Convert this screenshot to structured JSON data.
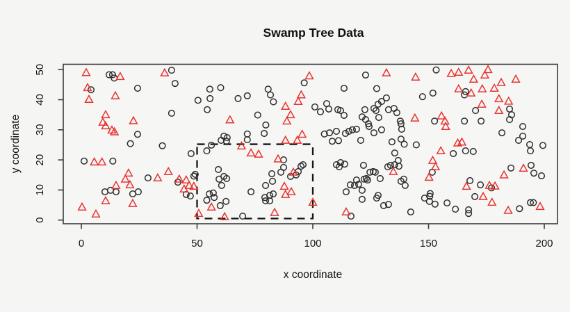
{
  "chart_data": {
    "type": "scatter",
    "title": "Swamp Tree Data",
    "xlabel": "x coordinate",
    "ylabel": "y coordinate",
    "xlim": [
      0,
      200
    ],
    "ylim": [
      0,
      50
    ],
    "x_ticks": [
      0,
      50,
      100,
      150,
      200
    ],
    "y_ticks": [
      0,
      10,
      20,
      30,
      40,
      50
    ],
    "grid": false,
    "legend": "none",
    "frame_color": "#3c3c3c",
    "annotation_box": {
      "shape": "dashed-rectangle",
      "color": "#161616",
      "x0": 50,
      "x1": 100,
      "y0": 0.5,
      "y1": 25.2
    },
    "series": [
      {
        "name": "circles",
        "marker": "open-circle",
        "color": "#2e2e2e",
        "points": [
          [
            12,
            48.3
          ],
          [
            13.5,
            48.3
          ],
          [
            14.2,
            47.2
          ],
          [
            39,
            49.8
          ],
          [
            4.2,
            43.3
          ],
          [
            40.5,
            45.4
          ],
          [
            24.3,
            43.8
          ],
          [
            39,
            35.5
          ],
          [
            24.3,
            28.5
          ],
          [
            21.2,
            25.4
          ],
          [
            35,
            24.7
          ],
          [
            1.2,
            19.6
          ],
          [
            13.6,
            19.6
          ],
          [
            28.8,
            14
          ],
          [
            10.2,
            9.4
          ],
          [
            12.6,
            9.9
          ],
          [
            15,
            9.4
          ],
          [
            22.2,
            8.7
          ],
          [
            24.6,
            9.4
          ],
          [
            41.7,
            12.6
          ],
          [
            47.4,
            22.1
          ],
          [
            48.6,
            14.6
          ],
          [
            49.2,
            15.2
          ],
          [
            45.3,
            8.5
          ],
          [
            47.1,
            8
          ],
          [
            55.5,
            43.5
          ],
          [
            60.2,
            44
          ],
          [
            50.4,
            39.8
          ],
          [
            55.6,
            40.4
          ],
          [
            54.4,
            36.7
          ],
          [
            67.7,
            40.4
          ],
          [
            71.7,
            41.3
          ],
          [
            80.7,
            43.5
          ],
          [
            81.7,
            41.6
          ],
          [
            83,
            39.3
          ],
          [
            76.2,
            34.9
          ],
          [
            79.7,
            31.6
          ],
          [
            79,
            28.8
          ],
          [
            61.6,
            27.9
          ],
          [
            63,
            27.4
          ],
          [
            60.4,
            26.5
          ],
          [
            62.7,
            26.2
          ],
          [
            71.7,
            28.6
          ],
          [
            71.7,
            26.7
          ],
          [
            96.3,
            45.6
          ],
          [
            54.2,
            23
          ],
          [
            56.2,
            24.9
          ],
          [
            87.4,
            20
          ],
          [
            59.2,
            16.8
          ],
          [
            61.6,
            14.5
          ],
          [
            62.8,
            13.8
          ],
          [
            59.5,
            13.6
          ],
          [
            60.6,
            11.5
          ],
          [
            55.3,
            8.7
          ],
          [
            57,
            9
          ],
          [
            57.4,
            7.5
          ],
          [
            54.2,
            6.6
          ],
          [
            60,
            4.8
          ],
          [
            62.5,
            6.2
          ],
          [
            69.7,
            1.3
          ],
          [
            73.3,
            9.4
          ],
          [
            79.6,
            11.5
          ],
          [
            82.6,
            12.9
          ],
          [
            82.3,
            15.4
          ],
          [
            86.2,
            15.9
          ],
          [
            87.4,
            17.5
          ],
          [
            79.3,
            7.5
          ],
          [
            81.4,
            8.2
          ],
          [
            82.9,
            8.7
          ],
          [
            79.6,
            6.4
          ],
          [
            81.4,
            6.4
          ],
          [
            90.4,
            14.5
          ],
          [
            92.8,
            15
          ],
          [
            93.7,
            16.1
          ],
          [
            94.9,
            17.9
          ],
          [
            95.8,
            18.4
          ],
          [
            122.8,
            48.2
          ],
          [
            113.5,
            43.8
          ],
          [
            127.6,
            43.7
          ],
          [
            100.9,
            37.6
          ],
          [
            103.3,
            36
          ],
          [
            106,
            38.7
          ],
          [
            106.9,
            36.9
          ],
          [
            110.8,
            36.7
          ],
          [
            112,
            36.4
          ],
          [
            113.5,
            34.8
          ],
          [
            147.4,
            41
          ],
          [
            151.9,
            42.2
          ],
          [
            153.3,
            49.9
          ],
          [
            122.5,
            36.7
          ],
          [
            126.4,
            37.1
          ],
          [
            127.3,
            36.4
          ],
          [
            128.2,
            38.5
          ],
          [
            129.7,
            39.4
          ],
          [
            131.8,
            40.6
          ],
          [
            132.7,
            36.7
          ],
          [
            135.1,
            37.1
          ],
          [
            136.3,
            35.7
          ],
          [
            137.8,
            32.9
          ],
          [
            138.1,
            32
          ],
          [
            138.4,
            30.2
          ],
          [
            128.5,
            34.1
          ],
          [
            121.3,
            34.3
          ],
          [
            122.8,
            33.4
          ],
          [
            124,
            32
          ],
          [
            124.3,
            31.1
          ],
          [
            129.7,
            30
          ],
          [
            126.4,
            29
          ],
          [
            117.1,
            30
          ],
          [
            118.9,
            30.2
          ],
          [
            115.6,
            29.5
          ],
          [
            110.2,
            29.5
          ],
          [
            107.2,
            29
          ],
          [
            105,
            28.6
          ],
          [
            108.4,
            26.2
          ],
          [
            111.1,
            26.4
          ],
          [
            114.1,
            28.8
          ],
          [
            120.7,
            26.5
          ],
          [
            134.2,
            26
          ],
          [
            138.1,
            26.9
          ],
          [
            139.5,
            25.2
          ],
          [
            144.7,
            25
          ],
          [
            135.4,
            22.3
          ],
          [
            110.2,
            18.4
          ],
          [
            112,
            19.1
          ],
          [
            113.8,
            18.6
          ],
          [
            111.4,
            17.7
          ],
          [
            121.9,
            18.2
          ],
          [
            124.7,
            15.9
          ],
          [
            126.1,
            16.1
          ],
          [
            127,
            15.9
          ],
          [
            123.1,
            13.8
          ],
          [
            123.7,
            13.3
          ],
          [
            122.2,
            13.6
          ],
          [
            118.9,
            13.3
          ],
          [
            119.8,
            11.9
          ],
          [
            118,
            11.5
          ],
          [
            116.2,
            11.7
          ],
          [
            114.4,
            9.4
          ],
          [
            121.3,
            9.9
          ],
          [
            129.1,
            13.8
          ],
          [
            121.3,
            6.9
          ],
          [
            127.6,
            7.3
          ],
          [
            128.2,
            8.2
          ],
          [
            130.6,
            4.8
          ],
          [
            132.7,
            5.2
          ],
          [
            132.4,
            17.7
          ],
          [
            133.6,
            18.2
          ],
          [
            135.4,
            18.4
          ],
          [
            136.9,
            19.8
          ],
          [
            137.2,
            17.9
          ],
          [
            138.1,
            12.9
          ],
          [
            139.3,
            13.6
          ],
          [
            139.9,
            11.5
          ],
          [
            142.3,
            2.7
          ],
          [
            116.5,
            1.3
          ],
          [
            151.6,
            15.9
          ],
          [
            148.3,
            7.3
          ],
          [
            150.5,
            7.9
          ],
          [
            150.7,
            8.8
          ],
          [
            150.4,
            6.2
          ],
          [
            152.8,
            5.3
          ],
          [
            166,
            42.7
          ],
          [
            165.5,
            41.6
          ],
          [
            170.3,
            36.4
          ],
          [
            152.6,
            32.9
          ],
          [
            165.5,
            32.9
          ],
          [
            172.7,
            32.9
          ],
          [
            185,
            36.9
          ],
          [
            185.9,
            35
          ],
          [
            185,
            33.4
          ],
          [
            181.7,
            29
          ],
          [
            190.7,
            31.1
          ],
          [
            190.7,
            27.9
          ],
          [
            188.9,
            26.5
          ],
          [
            193.7,
            25.1
          ],
          [
            194,
            23
          ],
          [
            199.4,
            24.8
          ],
          [
            160.7,
            22.1
          ],
          [
            166,
            23
          ],
          [
            169.3,
            22.8
          ],
          [
            185.6,
            17.3
          ],
          [
            194.3,
            18.2
          ],
          [
            195.5,
            15.6
          ],
          [
            198.8,
            14.7
          ],
          [
            167.9,
            13.1
          ],
          [
            172.4,
            11.7
          ],
          [
            177.2,
            10.7
          ],
          [
            170,
            7.8
          ],
          [
            158,
            5.7
          ],
          [
            161.6,
            3.6
          ],
          [
            167.3,
            3.4
          ],
          [
            167.3,
            2.2
          ],
          [
            189.3,
            3.8
          ],
          [
            194,
            5.8
          ],
          [
            195.3,
            5.8
          ]
        ]
      },
      {
        "name": "triangles",
        "marker": "open-triangle",
        "color": "#e8332e",
        "points": [
          [
            2.1,
            49
          ],
          [
            16.8,
            47.7
          ],
          [
            36,
            48.9
          ],
          [
            2.7,
            44
          ],
          [
            3.3,
            40.1
          ],
          [
            14.7,
            41.3
          ],
          [
            10.5,
            35
          ],
          [
            9.3,
            32.5
          ],
          [
            10.5,
            31.3
          ],
          [
            13.2,
            29.9
          ],
          [
            14.3,
            29.3
          ],
          [
            22.5,
            33
          ],
          [
            5.6,
            19.3
          ],
          [
            8.9,
            19.3
          ],
          [
            20.4,
            15.6
          ],
          [
            19,
            13.6
          ],
          [
            21,
            11.7
          ],
          [
            15,
            11.5
          ],
          [
            33,
            14
          ],
          [
            37.6,
            16.1
          ],
          [
            42.3,
            13.6
          ],
          [
            10.5,
            6.4
          ],
          [
            22.2,
            5.5
          ],
          [
            0.3,
            4.3
          ],
          [
            6.3,
            2
          ],
          [
            45.3,
            13.3
          ],
          [
            46.6,
            11.5
          ],
          [
            44.4,
            10.3
          ],
          [
            48.6,
            11.2
          ],
          [
            64.2,
            33.3
          ],
          [
            88.2,
            37.8
          ],
          [
            95,
            41.6
          ],
          [
            93.7,
            39.4
          ],
          [
            90.4,
            35
          ],
          [
            88.8,
            32.9
          ],
          [
            98.5,
            47.9
          ],
          [
            95.4,
            28.5
          ],
          [
            93.3,
            26.5
          ],
          [
            88.2,
            26.5
          ],
          [
            69.2,
            24.6
          ],
          [
            73.3,
            22.3
          ],
          [
            76.6,
            21.9
          ],
          [
            85,
            20.3
          ],
          [
            56.2,
            4.3
          ],
          [
            50.7,
            2.2
          ],
          [
            61.9,
            1.1
          ],
          [
            83.5,
            2.5
          ],
          [
            87.7,
            11.2
          ],
          [
            90.7,
            9.4
          ],
          [
            88.2,
            8.5
          ],
          [
            91.6,
            15.9
          ],
          [
            100,
            5.9
          ],
          [
            114.4,
            2.7
          ],
          [
            134.8,
            16.1
          ],
          [
            144.1,
            33.9
          ],
          [
            131.8,
            48.9
          ],
          [
            144.4,
            47.5
          ],
          [
            151.8,
            19.8
          ],
          [
            150.2,
            14.2
          ],
          [
            153,
            17.7
          ],
          [
            155.3,
            23
          ],
          [
            162.6,
            25.6
          ],
          [
            164.4,
            25.9
          ],
          [
            159.8,
            48.7
          ],
          [
            163,
            49.1
          ],
          [
            167.3,
            49.8
          ],
          [
            175.7,
            50
          ],
          [
            174.3,
            48.2
          ],
          [
            169.5,
            46.8
          ],
          [
            181.4,
            45.7
          ],
          [
            187.7,
            46.8
          ],
          [
            163,
            43.6
          ],
          [
            168.4,
            42.2
          ],
          [
            173.2,
            43.6
          ],
          [
            178.4,
            43.8
          ],
          [
            180.4,
            40.3
          ],
          [
            184.6,
            39.5
          ],
          [
            173,
            38.5
          ],
          [
            180.4,
            36.4
          ],
          [
            155.6,
            34.6
          ],
          [
            157.1,
            32.9
          ],
          [
            157.4,
            31.1
          ],
          [
            191,
            17.2
          ],
          [
            182.6,
            15
          ],
          [
            166.4,
            11.2
          ],
          [
            176.3,
            11.5
          ],
          [
            178.7,
            11.3
          ],
          [
            173.6,
            7.8
          ],
          [
            177.4,
            5.9
          ],
          [
            184.4,
            3.2
          ],
          [
            198.2,
            4.5
          ]
        ]
      }
    ]
  }
}
